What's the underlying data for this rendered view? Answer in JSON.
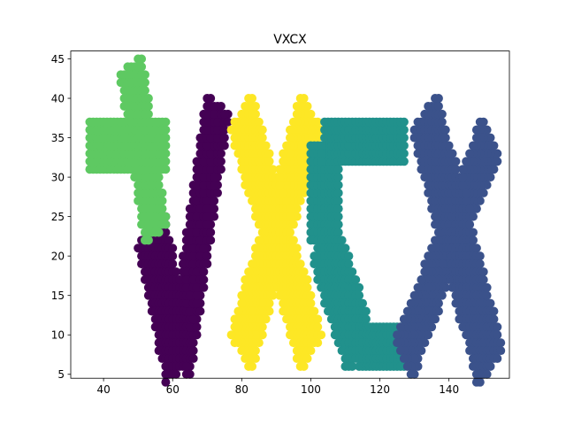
{
  "chart_data": {
    "type": "scatter",
    "title": "VXCX",
    "xlabel": "",
    "ylabel": "",
    "xlim": [
      30.5,
      157.5
    ],
    "ylim": [
      4.5,
      46.0
    ],
    "xticks": [
      40,
      60,
      80,
      100,
      120,
      140
    ],
    "yticks": [
      5,
      10,
      15,
      20,
      25,
      30,
      35,
      40,
      45
    ],
    "grid": false,
    "legend": "none",
    "series": [
      {
        "color": "#440154",
        "segments": [
          {
            "from": [
              54,
              23
            ],
            "to": [
              62,
              6
            ],
            "width": 8
          },
          {
            "from": [
              62,
              6
            ],
            "to": [
              73,
              39
            ],
            "width": 6
          }
        ]
      },
      {
        "color": "#5ec962",
        "segments": [
          {
            "from": [
              36,
              34
            ],
            "to": [
              58,
              34
            ],
            "width": 6
          },
          {
            "from": [
              48,
              44
            ],
            "to": [
              55,
              23
            ],
            "width": 6
          }
        ]
      },
      {
        "color": "#fde725",
        "segments": [
          {
            "from": [
              80,
              38
            ],
            "to": [
              100,
              8
            ],
            "width": 7
          },
          {
            "from": [
              100,
              38
            ],
            "to": [
              80,
              8
            ],
            "width": 7
          }
        ]
      },
      {
        "color": "#21918c",
        "segments": [
          {
            "from": [
              104,
              34
            ],
            "to": [
              127,
              34
            ],
            "width": 5
          },
          {
            "from": [
              104,
              34
            ],
            "to": [
              104,
              22
            ],
            "width": 8
          },
          {
            "from": [
              104,
              22
            ],
            "to": [
              114,
              8
            ],
            "width": 8
          },
          {
            "from": [
              114,
              8
            ],
            "to": [
              127,
              8
            ],
            "width": 5
          }
        ]
      },
      {
        "color": "#3b528b",
        "segments": [
          {
            "from": [
              133,
              38
            ],
            "to": [
              152,
              6
            ],
            "width": 8
          },
          {
            "from": [
              152,
              35
            ],
            "to": [
              127,
              7
            ],
            "width": 6
          }
        ]
      }
    ]
  }
}
